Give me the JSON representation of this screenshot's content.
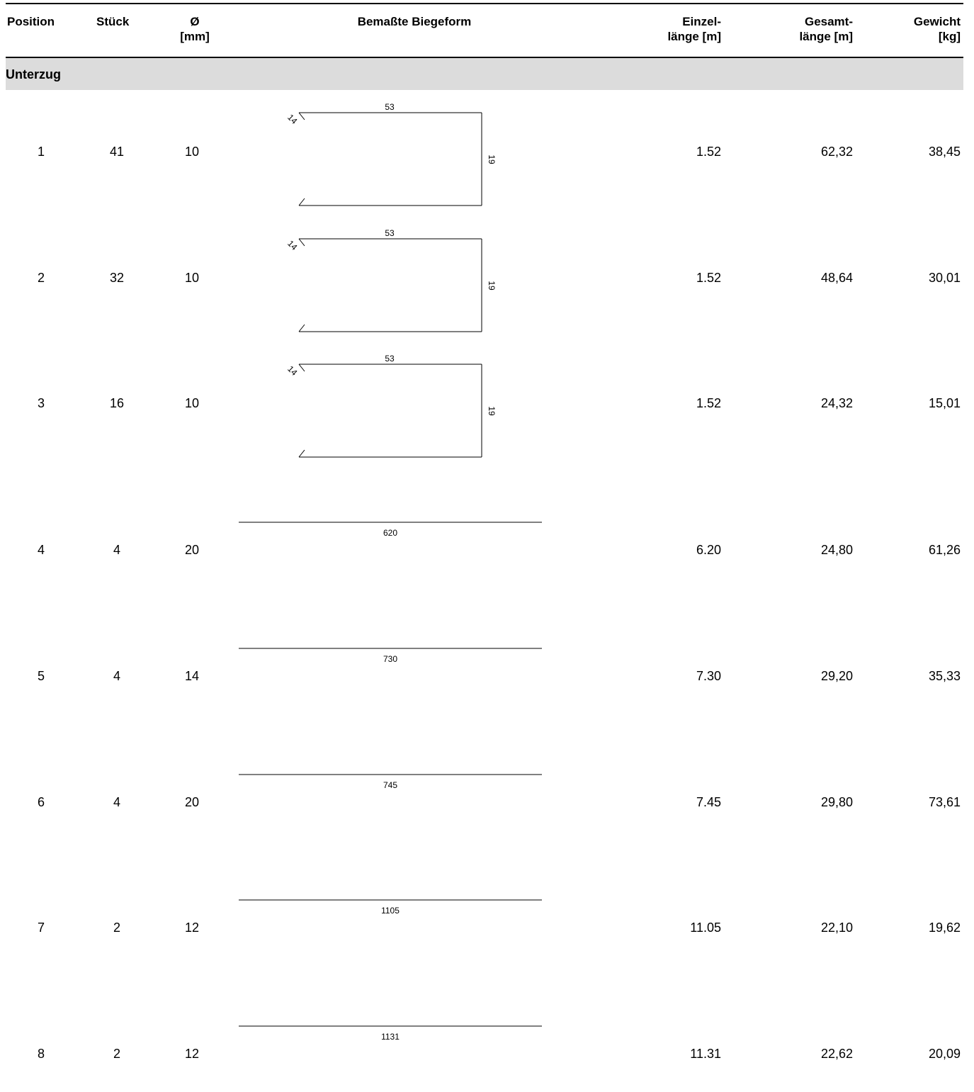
{
  "columns": {
    "position": "Position",
    "stueck": "Stück",
    "diameter_line1": "Ø",
    "diameter_line2": "[mm]",
    "shape": "Bemaßte Biegeform",
    "einzel_line1": "Einzel-",
    "einzel_line2": "länge [m]",
    "gesamt_line1": "Gesamt-",
    "gesamt_line2": "länge [m]",
    "gewicht_line1": "Gewicht",
    "gewicht_line2": "[kg]"
  },
  "section": "Unterzug",
  "rows": [
    {
      "position": "1",
      "stueck": "41",
      "diameter": "10",
      "shape_type": "stirrup",
      "dim_top": "53",
      "dim_side": "19",
      "dim_hook": "14",
      "einzel": "1.52",
      "gesamt": "62,32",
      "gewicht": "38,45"
    },
    {
      "position": "2",
      "stueck": "32",
      "diameter": "10",
      "shape_type": "stirrup",
      "dim_top": "53",
      "dim_side": "19",
      "dim_hook": "14",
      "einzel": "1.52",
      "gesamt": "48,64",
      "gewicht": "30,01"
    },
    {
      "position": "3",
      "stueck": "16",
      "diameter": "10",
      "shape_type": "stirrup",
      "dim_top": "53",
      "dim_side": "19",
      "dim_hook": "14",
      "einzel": "1.52",
      "gesamt": "24,32",
      "gewicht": "15,01"
    },
    {
      "position": "4",
      "stueck": "4",
      "diameter": "20",
      "shape_type": "straight",
      "dim_length": "620",
      "einzel": "6.20",
      "gesamt": "24,80",
      "gewicht": "61,26"
    },
    {
      "position": "5",
      "stueck": "4",
      "diameter": "14",
      "shape_type": "straight",
      "dim_length": "730",
      "einzel": "7.30",
      "gesamt": "29,20",
      "gewicht": "35,33"
    },
    {
      "position": "6",
      "stueck": "4",
      "diameter": "20",
      "shape_type": "straight",
      "dim_length": "745",
      "einzel": "7.45",
      "gesamt": "29,80",
      "gewicht": "73,61"
    },
    {
      "position": "7",
      "stueck": "2",
      "diameter": "12",
      "shape_type": "straight",
      "dim_length": "1105",
      "einzel": "11.05",
      "gesamt": "22,10",
      "gewicht": "19,62"
    },
    {
      "position": "8",
      "stueck": "2",
      "diameter": "12",
      "shape_type": "straight",
      "dim_length": "1131",
      "einzel": "11.31",
      "gesamt": "22,62",
      "gewicht": "20,09"
    }
  ]
}
